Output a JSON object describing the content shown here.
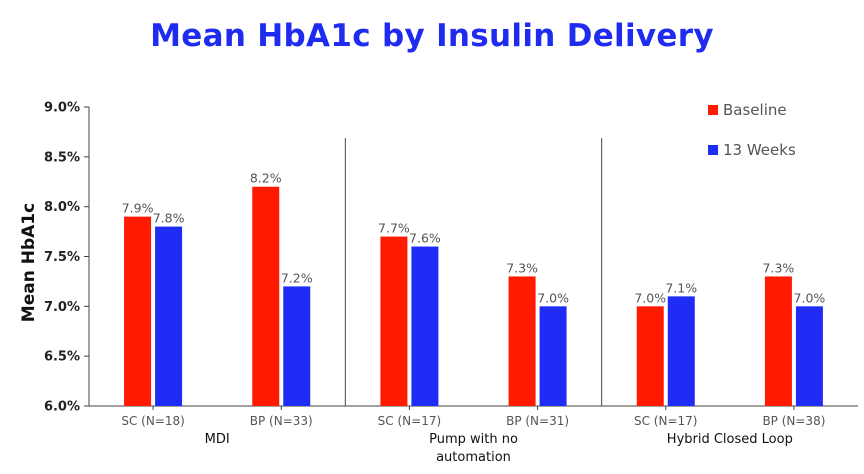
{
  "chart_data": {
    "type": "bar",
    "title": "Mean HbA1c by Insulin Delivery",
    "ylabel": "Mean HbA1c",
    "xlabel": "",
    "ylim": [
      6.0,
      9.0
    ],
    "yticks": [
      "6.0%",
      "6.5%",
      "7.0%",
      "7.5%",
      "8.0%",
      "8.5%",
      "9.0%"
    ],
    "ytick_values": [
      6.0,
      6.5,
      7.0,
      7.5,
      8.0,
      8.5,
      9.0
    ],
    "categories": [
      "SC (N=18)",
      "BP (N=33)",
      "SC (N=17)",
      "BP (N=31)",
      "SC (N=17)",
      "BP (N=38)"
    ],
    "groups": [
      {
        "label_lines": [
          "MDI"
        ],
        "categories": [
          0,
          1
        ]
      },
      {
        "label_lines": [
          "Pump with no",
          "automation"
        ],
        "categories": [
          2,
          3
        ]
      },
      {
        "label_lines": [
          "Hybrid Closed Loop"
        ],
        "categories": [
          4,
          5
        ]
      }
    ],
    "series": [
      {
        "name": "Baseline",
        "color": "#ff1a00",
        "values": [
          7.9,
          8.2,
          7.7,
          7.3,
          7.0,
          7.3
        ],
        "labels": [
          "7.9%",
          "8.2%",
          "7.7%",
          "7.3%",
          "7.0%",
          "7.3%"
        ]
      },
      {
        "name": "13 Weeks",
        "color": "#1f2cf5",
        "values": [
          7.8,
          7.2,
          7.6,
          7.0,
          7.1,
          7.0
        ],
        "labels": [
          "7.8%",
          "7.2%",
          "7.6%",
          "7.0%",
          "7.1%",
          "7.0%"
        ]
      }
    ],
    "legend_position": "top-right",
    "grid": false
  }
}
